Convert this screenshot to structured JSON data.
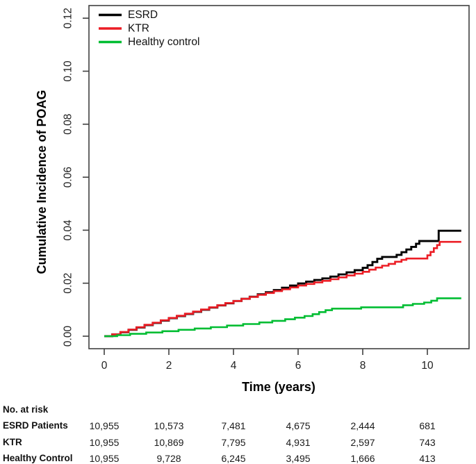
{
  "figure": {
    "background": "#ffffff",
    "axis_color": "#404040"
  },
  "chart_data": {
    "type": "line",
    "subtype": "step-cumulative-incidence",
    "title": "",
    "xlabel": "Time (years)",
    "ylabel": "Cumulative Incidence of POAG",
    "xlim": [
      -0.45,
      11.3
    ],
    "ylim": [
      -0.005,
      0.125
    ],
    "xticks": [
      0,
      2,
      4,
      6,
      8,
      10
    ],
    "xtick_labels": [
      "0",
      "2",
      "4",
      "6",
      "8",
      "10"
    ],
    "yticks": [
      0,
      0.02,
      0.04,
      0.06,
      0.08,
      0.1,
      0.12
    ],
    "ytick_labels": [
      "0.00",
      "0.02",
      "0.04",
      "0.06",
      "0.08",
      "0.10",
      "0.12"
    ],
    "grid": false,
    "legend_position": "top-left",
    "series": [
      {
        "name": "ESRD",
        "color": "#000000",
        "points": [
          [
            0,
            0
          ],
          [
            0.25,
            0.0007
          ],
          [
            0.5,
            0.0015
          ],
          [
            0.75,
            0.0024
          ],
          [
            1,
            0.0033
          ],
          [
            1.25,
            0.0042
          ],
          [
            1.5,
            0.005
          ],
          [
            1.75,
            0.0059
          ],
          [
            2,
            0.0068
          ],
          [
            2.25,
            0.0076
          ],
          [
            2.5,
            0.0084
          ],
          [
            2.75,
            0.0092
          ],
          [
            3,
            0.01
          ],
          [
            3.25,
            0.0108
          ],
          [
            3.5,
            0.0116
          ],
          [
            3.75,
            0.0124
          ],
          [
            4,
            0.0133
          ],
          [
            4.25,
            0.0141
          ],
          [
            4.5,
            0.0149
          ],
          [
            4.75,
            0.0158
          ],
          [
            5,
            0.0166
          ],
          [
            5.25,
            0.0174
          ],
          [
            5.5,
            0.0183
          ],
          [
            5.75,
            0.0191
          ],
          [
            6,
            0.0199
          ],
          [
            6.25,
            0.0206
          ],
          [
            6.5,
            0.0212
          ],
          [
            6.75,
            0.0218
          ],
          [
            7,
            0.0225
          ],
          [
            7.25,
            0.0233
          ],
          [
            7.5,
            0.0241
          ],
          [
            7.75,
            0.0249
          ],
          [
            8,
            0.0258
          ],
          [
            8.15,
            0.0268
          ],
          [
            8.3,
            0.028
          ],
          [
            8.45,
            0.0292
          ],
          [
            8.6,
            0.0299
          ],
          [
            9.05,
            0.0307
          ],
          [
            9.2,
            0.0317
          ],
          [
            9.35,
            0.0327
          ],
          [
            9.5,
            0.0337
          ],
          [
            9.65,
            0.0349
          ],
          [
            9.75,
            0.0359
          ],
          [
            10.35,
            0.0398
          ],
          [
            11.05,
            0.0398
          ]
        ]
      },
      {
        "name": "KTR",
        "color": "#ec1d25",
        "points": [
          [
            0,
            0
          ],
          [
            0.25,
            0.0007
          ],
          [
            0.5,
            0.0016
          ],
          [
            0.75,
            0.0025
          ],
          [
            1,
            0.0034
          ],
          [
            1.25,
            0.0043
          ],
          [
            1.5,
            0.0051
          ],
          [
            1.75,
            0.006
          ],
          [
            2,
            0.0069
          ],
          [
            2.25,
            0.0077
          ],
          [
            2.5,
            0.0085
          ],
          [
            2.75,
            0.0093
          ],
          [
            3,
            0.0101
          ],
          [
            3.25,
            0.0109
          ],
          [
            3.5,
            0.0117
          ],
          [
            3.75,
            0.0125
          ],
          [
            4,
            0.0133
          ],
          [
            4.25,
            0.0141
          ],
          [
            4.5,
            0.0148
          ],
          [
            4.75,
            0.0156
          ],
          [
            5,
            0.0163
          ],
          [
            5.25,
            0.017
          ],
          [
            5.5,
            0.0177
          ],
          [
            5.75,
            0.0184
          ],
          [
            6,
            0.0191
          ],
          [
            6.25,
            0.0197
          ],
          [
            6.5,
            0.0203
          ],
          [
            6.75,
            0.0209
          ],
          [
            7,
            0.0215
          ],
          [
            7.25,
            0.0222
          ],
          [
            7.5,
            0.0229
          ],
          [
            7.75,
            0.0236
          ],
          [
            8,
            0.0243
          ],
          [
            8.2,
            0.0251
          ],
          [
            8.4,
            0.0259
          ],
          [
            8.6,
            0.0266
          ],
          [
            8.8,
            0.0273
          ],
          [
            9,
            0.0281
          ],
          [
            9.2,
            0.0288
          ],
          [
            9.35,
            0.0293
          ],
          [
            10,
            0.0305
          ],
          [
            10.1,
            0.0318
          ],
          [
            10.2,
            0.0332
          ],
          [
            10.3,
            0.0344
          ],
          [
            10.38,
            0.0356
          ],
          [
            11.05,
            0.0356
          ]
        ]
      },
      {
        "name": "Healthy control",
        "color": "#00bd32",
        "points": [
          [
            0,
            0
          ],
          [
            0.4,
            0.0004
          ],
          [
            0.8,
            0.0009
          ],
          [
            1.3,
            0.0014
          ],
          [
            1.8,
            0.0019
          ],
          [
            2.3,
            0.0024
          ],
          [
            2.8,
            0.0029
          ],
          [
            3.3,
            0.0034
          ],
          [
            3.8,
            0.004
          ],
          [
            4.3,
            0.0046
          ],
          [
            4.8,
            0.0052
          ],
          [
            5.2,
            0.0058
          ],
          [
            5.6,
            0.0064
          ],
          [
            5.9,
            0.007
          ],
          [
            6.2,
            0.0076
          ],
          [
            6.45,
            0.0083
          ],
          [
            6.65,
            0.0091
          ],
          [
            6.85,
            0.0098
          ],
          [
            7.05,
            0.0104
          ],
          [
            7.95,
            0.0109
          ],
          [
            9.25,
            0.0117
          ],
          [
            9.55,
            0.0122
          ],
          [
            9.9,
            0.0127
          ],
          [
            10.12,
            0.0134
          ],
          [
            10.3,
            0.0143
          ],
          [
            11.05,
            0.0143
          ]
        ]
      }
    ]
  },
  "risk_table": {
    "header": "No. at risk",
    "time_points": [
      0,
      2,
      4,
      6,
      8,
      10
    ],
    "rows": [
      {
        "label": "ESRD Patients",
        "values": [
          "10,955",
          "10,573",
          "7,481",
          "4,675",
          "2,444",
          "681"
        ]
      },
      {
        "label": "KTR",
        "values": [
          "10,955",
          "10,869",
          "7,795",
          "4,931",
          "2,597",
          "743"
        ]
      },
      {
        "label": "Healthy Control",
        "values": [
          "10,955",
          "9,728",
          "6,245",
          "3,495",
          "1,666",
          "413"
        ]
      }
    ]
  }
}
